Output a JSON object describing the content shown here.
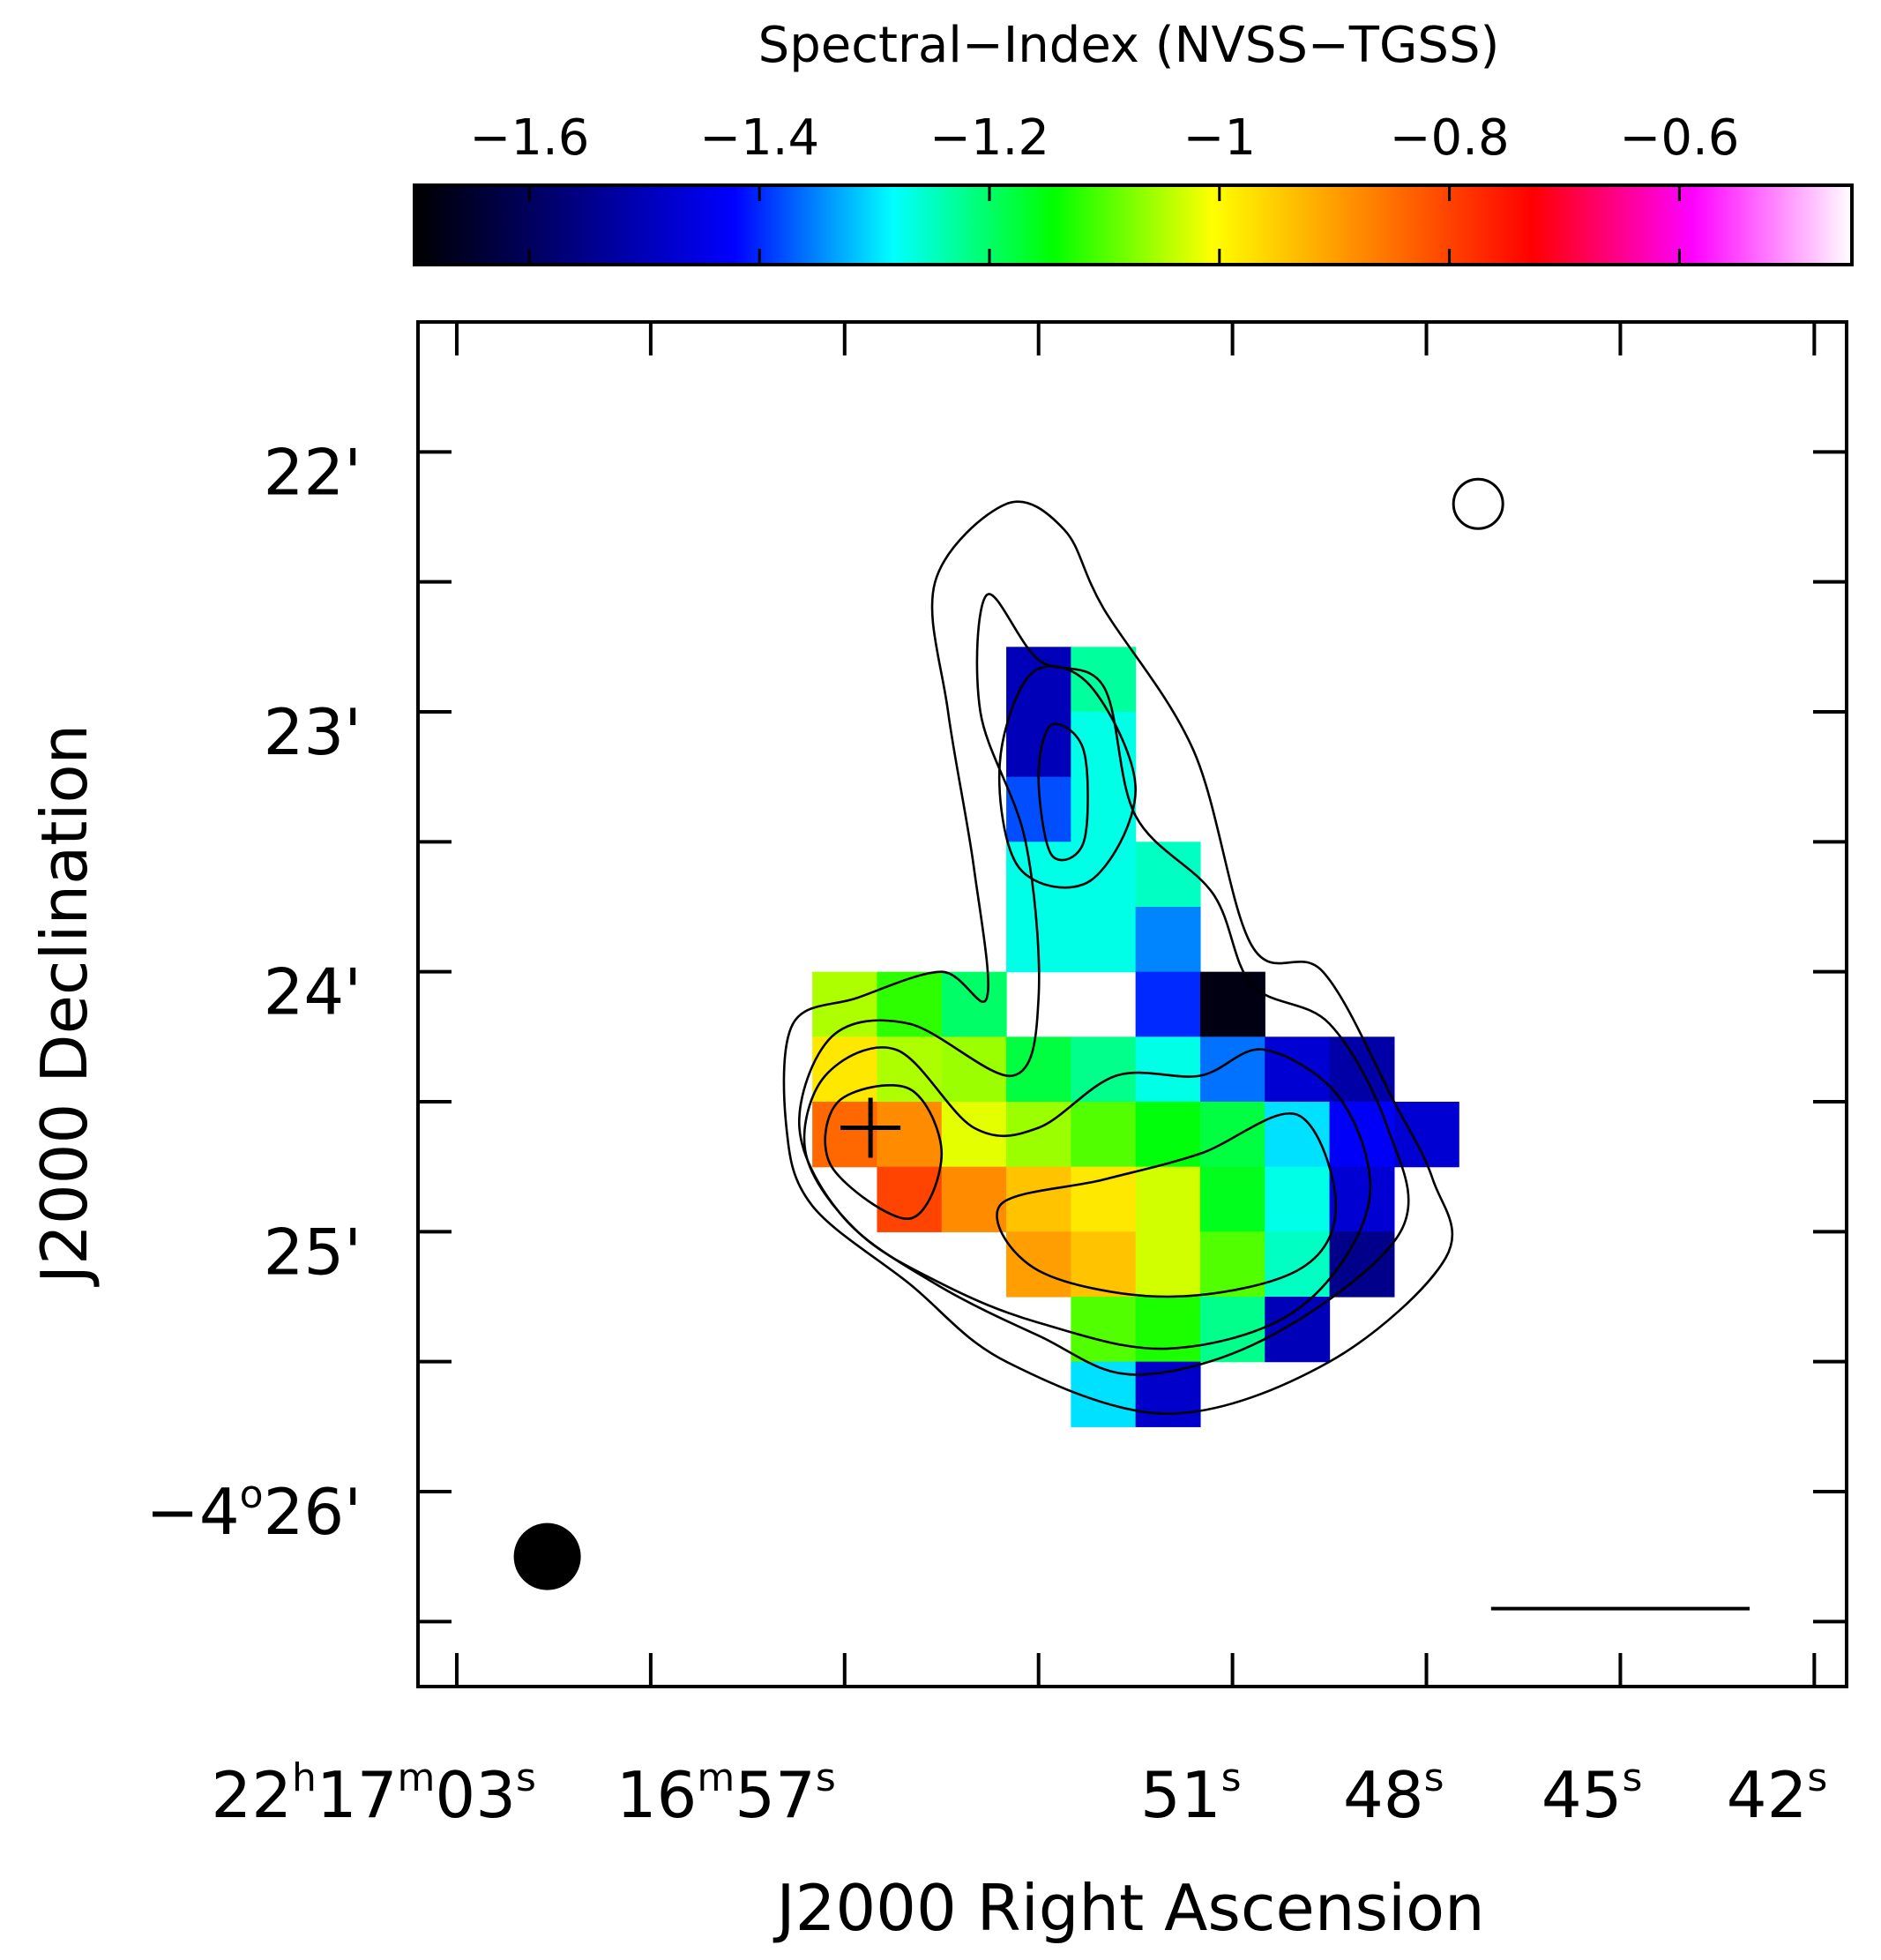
{
  "colorbar": {
    "title": "Spectral−Index (NVSS−TGSS)",
    "tick_labels": [
      "−1.6",
      "−1.4",
      "−1.2",
      "−1",
      "−0.8",
      "−0.6"
    ],
    "tick_values": [
      -1.6,
      -1.4,
      -1.2,
      -1.0,
      -0.8,
      -0.6
    ],
    "range": [
      -1.7,
      -0.45
    ],
    "palette": [
      "#000000",
      "#000080",
      "#0000ff",
      "#00ffff",
      "#00ff00",
      "#ffff00",
      "#ff8000",
      "#ff0000",
      "#ff00ff",
      "#ffffff"
    ]
  },
  "axes": {
    "xlabel": "J2000 Right Ascension",
    "ylabel": "J2000 Declination",
    "x_ticks": [
      {
        "main": "22",
        "sup1": "h",
        "mid": "17",
        "sup2": "m",
        "end": "03",
        "sup3": "s"
      },
      {
        "main": "16",
        "sup1": "m",
        "mid": "57",
        "sup2": "s"
      },
      {
        "main": "51",
        "sup1": "s"
      },
      {
        "main": "48",
        "sup1": "s"
      },
      {
        "main": "45",
        "sup1": "s"
      },
      {
        "main": "42",
        "sup1": "s"
      }
    ],
    "y_ticks": [
      {
        "text": "22'"
      },
      {
        "text": "23'"
      },
      {
        "text": "24'"
      },
      {
        "text": "25'"
      },
      {
        "text": "−4",
        "sup": "o",
        "rest": "26'"
      }
    ]
  },
  "chart_data": {
    "type": "heatmap",
    "title": "Spectral−Index (NVSS−TGSS)",
    "xlabel": "J2000 Right Ascension",
    "ylabel": "J2000 Declination",
    "ra_range_s": [
      63.6,
      41.5
    ],
    "dec_range_arcmin": [
      21.5,
      26.75
    ],
    "pixel_size": {
      "ra_s": 1.0,
      "dec_arcmin": 0.25
    },
    "pixels": [
      {
        "ra": 54.0,
        "dec": 22.875,
        "alpha": -1.5
      },
      {
        "ra": 53.0,
        "dec": 22.875,
        "alpha": -1.23
      },
      {
        "ra": 54.0,
        "dec": 23.125,
        "alpha": -1.5
      },
      {
        "ra": 53.0,
        "dec": 23.125,
        "alpha": -1.27
      },
      {
        "ra": 54.0,
        "dec": 23.375,
        "alpha": -1.38
      },
      {
        "ra": 53.0,
        "dec": 23.375,
        "alpha": -1.27
      },
      {
        "ra": 54.0,
        "dec": 23.625,
        "alpha": -1.27
      },
      {
        "ra": 53.0,
        "dec": 23.625,
        "alpha": -1.27
      },
      {
        "ra": 52.0,
        "dec": 23.625,
        "alpha": -1.25
      },
      {
        "ra": 54.0,
        "dec": 23.875,
        "alpha": -1.27
      },
      {
        "ra": 53.0,
        "dec": 23.875,
        "alpha": -1.27
      },
      {
        "ra": 52.0,
        "dec": 23.875,
        "alpha": -1.35
      },
      {
        "ra": 52.0,
        "dec": 24.125,
        "alpha": -1.4
      },
      {
        "ra": 51.0,
        "dec": 24.125,
        "alpha": -1.68
      },
      {
        "ra": 57.0,
        "dec": 24.125,
        "alpha": -1.05
      },
      {
        "ra": 56.0,
        "dec": 24.125,
        "alpha": -1.12
      },
      {
        "ra": 55.0,
        "dec": 24.125,
        "alpha": -1.2
      },
      {
        "ra": 57.0,
        "dec": 24.375,
        "alpha": -0.98
      },
      {
        "ra": 56.0,
        "dec": 24.375,
        "alpha": -1.05
      },
      {
        "ra": 55.0,
        "dec": 24.375,
        "alpha": -1.06
      },
      {
        "ra": 54.0,
        "dec": 24.375,
        "alpha": -1.18
      },
      {
        "ra": 53.0,
        "dec": 24.375,
        "alpha": -1.22
      },
      {
        "ra": 52.0,
        "dec": 24.375,
        "alpha": -1.27
      },
      {
        "ra": 51.0,
        "dec": 24.375,
        "alpha": -1.36
      },
      {
        "ra": 50.0,
        "dec": 24.375,
        "alpha": -1.47
      },
      {
        "ra": 49.0,
        "dec": 24.375,
        "alpha": -1.52
      },
      {
        "ra": 57.0,
        "dec": 24.625,
        "alpha": -0.84
      },
      {
        "ra": 56.0,
        "dec": 24.625,
        "alpha": -0.88
      },
      {
        "ra": 55.0,
        "dec": 24.625,
        "alpha": -1.02
      },
      {
        "ra": 54.0,
        "dec": 24.625,
        "alpha": -1.06
      },
      {
        "ra": 53.0,
        "dec": 24.625,
        "alpha": -1.1
      },
      {
        "ra": 52.0,
        "dec": 24.625,
        "alpha": -1.15
      },
      {
        "ra": 51.0,
        "dec": 24.625,
        "alpha": -1.18
      },
      {
        "ra": 50.0,
        "dec": 24.625,
        "alpha": -1.3
      },
      {
        "ra": 49.0,
        "dec": 24.625,
        "alpha": -1.43
      },
      {
        "ra": 48.0,
        "dec": 24.625,
        "alpha": -1.47
      },
      {
        "ra": 56.0,
        "dec": 24.875,
        "alpha": -0.8
      },
      {
        "ra": 55.0,
        "dec": 24.875,
        "alpha": -0.88
      },
      {
        "ra": 54.0,
        "dec": 24.875,
        "alpha": -0.94
      },
      {
        "ra": 53.0,
        "dec": 24.875,
        "alpha": -0.98
      },
      {
        "ra": 52.0,
        "dec": 24.875,
        "alpha": -1.03
      },
      {
        "ra": 51.0,
        "dec": 24.875,
        "alpha": -1.16
      },
      {
        "ra": 50.0,
        "dec": 24.875,
        "alpha": -1.27
      },
      {
        "ra": 49.0,
        "dec": 24.875,
        "alpha": -1.47
      },
      {
        "ra": 54.0,
        "dec": 25.125,
        "alpha": -0.9
      },
      {
        "ra": 53.0,
        "dec": 25.125,
        "alpha": -0.94
      },
      {
        "ra": 52.0,
        "dec": 25.125,
        "alpha": -1.03
      },
      {
        "ra": 51.0,
        "dec": 25.125,
        "alpha": -1.1
      },
      {
        "ra": 50.0,
        "dec": 25.125,
        "alpha": -1.25
      },
      {
        "ra": 49.0,
        "dec": 25.125,
        "alpha": -1.55
      },
      {
        "ra": 53.0,
        "dec": 25.375,
        "alpha": -1.1
      },
      {
        "ra": 52.0,
        "dec": 25.375,
        "alpha": -1.13
      },
      {
        "ra": 51.0,
        "dec": 25.375,
        "alpha": -1.22
      },
      {
        "ra": 50.0,
        "dec": 25.375,
        "alpha": -1.5
      },
      {
        "ra": 53.0,
        "dec": 25.625,
        "alpha": -1.3
      },
      {
        "ra": 52.0,
        "dec": 25.625,
        "alpha": -1.48
      }
    ],
    "contours": [
      {
        "level": 1,
        "points": [
          [
            51.6,
            23.15
          ],
          [
            53.0,
            22.6
          ],
          [
            53.6,
            22.3
          ],
          [
            54.5,
            22.2
          ],
          [
            55.6,
            22.5
          ],
          [
            55.4,
            23.0
          ],
          [
            55.0,
            23.6
          ],
          [
            54.8,
            24.1
          ],
          [
            55.5,
            24.0
          ],
          [
            56.8,
            24.1
          ],
          [
            57.8,
            24.2
          ],
          [
            57.9,
            24.6
          ],
          [
            57.5,
            24.9
          ],
          [
            56.0,
            25.2
          ],
          [
            54.5,
            25.5
          ],
          [
            52.0,
            25.7
          ],
          [
            49.5,
            25.5
          ],
          [
            47.7,
            25.1
          ],
          [
            47.9,
            24.8
          ],
          [
            48.5,
            24.5
          ],
          [
            49.6,
            24.0
          ],
          [
            50.7,
            23.9
          ]
        ]
      },
      {
        "level": 2,
        "points": [
          [
            54.0,
            22.8
          ],
          [
            54.8,
            22.55
          ],
          [
            54.9,
            23.0
          ],
          [
            54.2,
            23.5
          ],
          [
            54.0,
            24.1
          ],
          [
            54.4,
            24.4
          ],
          [
            56.0,
            24.2
          ],
          [
            57.2,
            24.25
          ],
          [
            57.7,
            24.6
          ],
          [
            57.0,
            24.95
          ],
          [
            55.6,
            25.2
          ],
          [
            54.0,
            25.4
          ],
          [
            52.5,
            25.55
          ],
          [
            50.4,
            25.4
          ],
          [
            48.4,
            25.0
          ],
          [
            48.6,
            24.6
          ],
          [
            49.5,
            24.2
          ],
          [
            50.7,
            24.05
          ],
          [
            51.3,
            23.7
          ],
          [
            52.5,
            23.4
          ],
          [
            53.0,
            22.9
          ]
        ]
      },
      {
        "level": 3,
        "points": [
          [
            53.2,
            22.9
          ],
          [
            54.1,
            22.85
          ],
          [
            54.6,
            23.2
          ],
          [
            54.3,
            23.6
          ],
          [
            53.2,
            23.65
          ],
          [
            52.5,
            23.3
          ]
        ]
      },
      {
        "level": 4,
        "points": [
          [
            54.0,
            23.25
          ],
          [
            53.8,
            23.05
          ],
          [
            53.3,
            23.15
          ],
          [
            53.3,
            23.5
          ],
          [
            53.8,
            23.55
          ]
        ]
      },
      {
        "level": 3,
        "points": [
          [
            56.2,
            24.3
          ],
          [
            57.3,
            24.4
          ],
          [
            57.6,
            24.7
          ],
          [
            56.8,
            25.0
          ],
          [
            55.5,
            25.2
          ],
          [
            54.0,
            25.35
          ],
          [
            52.0,
            25.45
          ],
          [
            50.0,
            25.3
          ],
          [
            48.9,
            24.9
          ],
          [
            49.3,
            24.5
          ],
          [
            50.5,
            24.3
          ],
          [
            51.5,
            24.4
          ],
          [
            52.8,
            24.4
          ],
          [
            54.0,
            24.6
          ],
          [
            55.0,
            24.6
          ]
        ]
      },
      {
        "level": 5,
        "points": [
          [
            56.0,
            24.45
          ],
          [
            57.1,
            24.5
          ],
          [
            57.2,
            24.75
          ],
          [
            56.0,
            24.95
          ],
          [
            55.5,
            24.7
          ]
        ]
      },
      {
        "level": 5,
        "points": [
          [
            54.6,
            24.9
          ],
          [
            53.0,
            24.8
          ],
          [
            51.5,
            24.7
          ],
          [
            50.0,
            24.55
          ],
          [
            49.4,
            24.9
          ],
          [
            50.0,
            25.15
          ],
          [
            52.0,
            25.25
          ],
          [
            54.0,
            25.15
          ]
        ]
      }
    ],
    "markers": [
      {
        "type": "cross",
        "ra": 56.6,
        "dec": 24.6
      },
      {
        "type": "open-circle",
        "ra": 47.2,
        "dec": 22.2
      },
      {
        "type": "filled-circle",
        "ra": 61.6,
        "dec": 26.25
      }
    ],
    "scalebar": {
      "ra_start": 47.0,
      "ra_end": 43.0,
      "dec": 26.45
    }
  }
}
